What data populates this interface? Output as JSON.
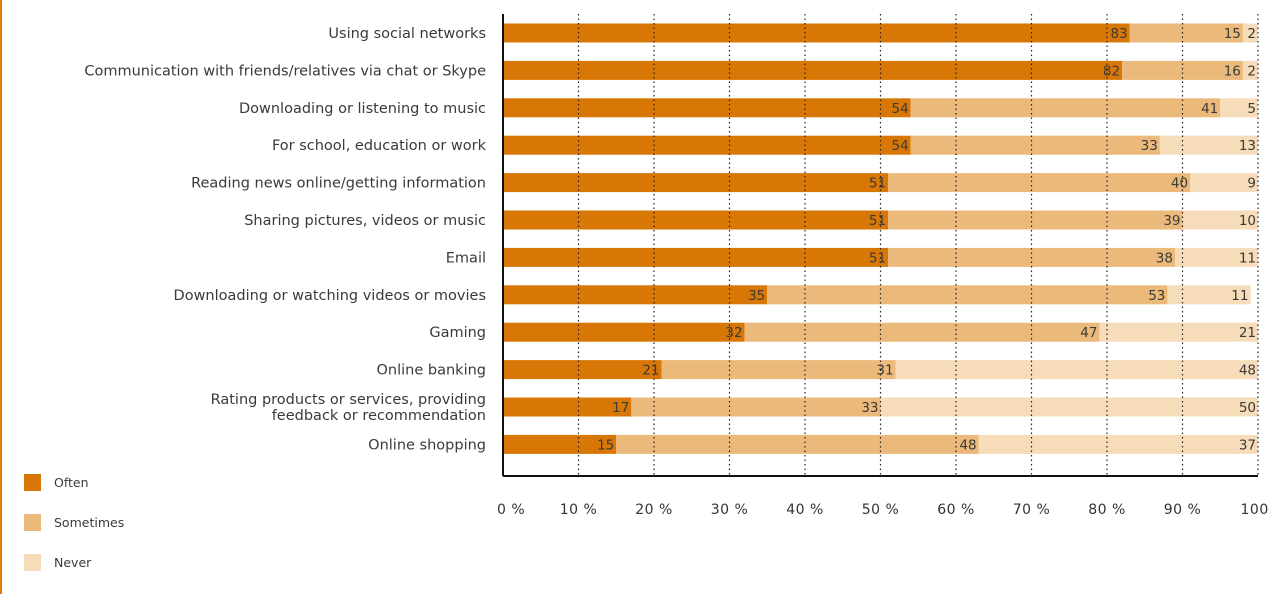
{
  "chart_data": {
    "type": "bar",
    "orientation": "horizontal",
    "stacked": true,
    "categories": [
      "Using social networks",
      "Communication with friends/relatives via chat or Skype",
      "Downloading or listening to music",
      "For school, education or work",
      "Reading news online/getting information",
      "Sharing pictures, videos or music",
      "Email",
      "Downloading or watching videos or movies",
      "Gaming",
      "Online banking",
      "Rating products or services, providing feedback or recommendation",
      "Online shopping"
    ],
    "category_lines": [
      [
        "Using social networks"
      ],
      [
        "Communication with friends/relatives via chat or Skype"
      ],
      [
        "Downloading or listening to music"
      ],
      [
        "For school, education or work"
      ],
      [
        "Reading news online/getting information"
      ],
      [
        "Sharing pictures, videos or music"
      ],
      [
        "Email"
      ],
      [
        "Downloading or watching videos or movies"
      ],
      [
        "Gaming"
      ],
      [
        "Online banking"
      ],
      [
        "Rating products or services, providing",
        "feedback or recommendation"
      ],
      [
        "Online shopping"
      ]
    ],
    "series": [
      {
        "name": "Often",
        "color": "#d97706",
        "values": [
          83,
          82,
          54,
          54,
          51,
          51,
          51,
          35,
          32,
          21,
          17,
          15
        ]
      },
      {
        "name": "Sometimes",
        "color": "#ebb97a",
        "values": [
          15,
          16,
          41,
          33,
          40,
          39,
          38,
          53,
          47,
          31,
          33,
          48
        ]
      },
      {
        "name": "Never",
        "color": "#f6dcb8",
        "values": [
          2,
          2,
          5,
          13,
          9,
          10,
          11,
          11,
          21,
          48,
          50,
          37
        ]
      }
    ],
    "x_ticks": [
      "0 %",
      "10 %",
      "20 %",
      "30 %",
      "40 %",
      "50 %",
      "60 %",
      "70 %",
      "80 %",
      "90 %",
      "100 %"
    ],
    "xlim": [
      0,
      100
    ],
    "grid": "vertical dotted",
    "legend_position": "bottom-left",
    "title": "",
    "xlabel": "",
    "ylabel": ""
  }
}
